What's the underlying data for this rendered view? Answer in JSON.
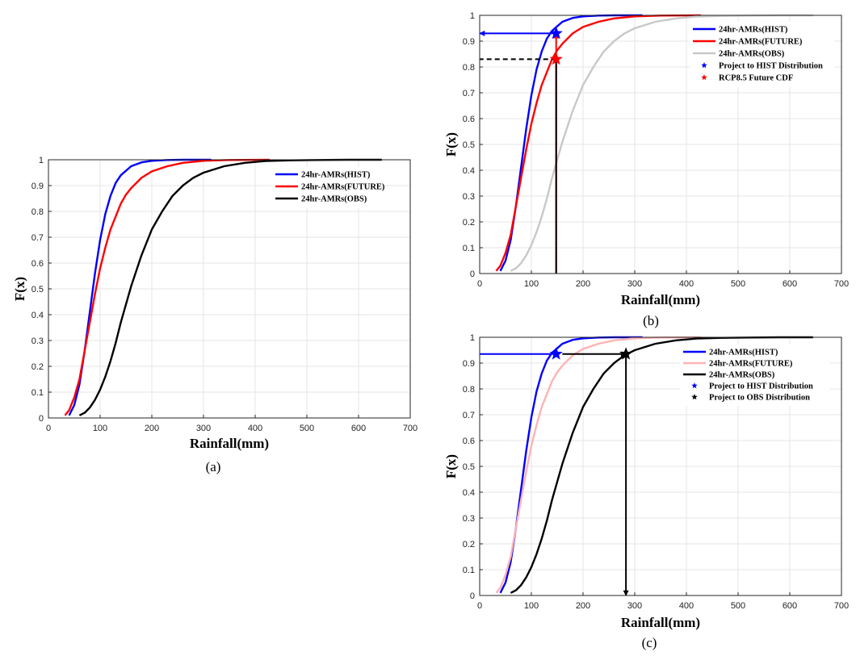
{
  "chart_data": [
    {
      "id": "a",
      "type": "line",
      "caption": "(a)",
      "xlabel": "Rainfall(mm)",
      "ylabel": "F(x)",
      "xlim": [
        0,
        700
      ],
      "ylim": [
        0,
        1
      ],
      "xticks": [
        "0",
        "100",
        "200",
        "300",
        "400",
        "500",
        "600",
        "700"
      ],
      "yticks": [
        "0",
        "0.1",
        "0.2",
        "0.3",
        "0.4",
        "0.5",
        "0.6",
        "0.7",
        "0.8",
        "0.9",
        "1"
      ],
      "grid": true,
      "legend_position": "top-right",
      "series": [
        {
          "name": "24hr-AMRs(HIST)",
          "color": "#0000ff",
          "x": [
            40,
            50,
            60,
            70,
            80,
            90,
            100,
            110,
            120,
            130,
            140,
            160,
            180,
            200,
            230,
            260,
            315
          ],
          "y": [
            0.01,
            0.05,
            0.13,
            0.26,
            0.41,
            0.56,
            0.69,
            0.79,
            0.86,
            0.91,
            0.94,
            0.975,
            0.99,
            0.996,
            0.999,
            1.0,
            1.0
          ]
        },
        {
          "name": "24hr-AMRs(FUTURE)",
          "color": "#ff0000",
          "x": [
            32,
            40,
            50,
            60,
            70,
            80,
            90,
            100,
            110,
            120,
            130,
            140,
            150,
            160,
            180,
            200,
            230,
            260,
            300,
            350,
            428
          ],
          "y": [
            0.01,
            0.03,
            0.08,
            0.15,
            0.26,
            0.37,
            0.48,
            0.58,
            0.66,
            0.73,
            0.78,
            0.83,
            0.865,
            0.89,
            0.93,
            0.955,
            0.975,
            0.988,
            0.996,
            0.999,
            1.0
          ]
        },
        {
          "name": "24hr-AMRs(OBS)",
          "color": "#000000",
          "x": [
            60,
            70,
            80,
            90,
            100,
            110,
            120,
            130,
            140,
            150,
            160,
            180,
            200,
            220,
            240,
            260,
            280,
            300,
            340,
            380,
            420,
            470,
            520,
            580,
            645
          ],
          "y": [
            0.01,
            0.02,
            0.04,
            0.07,
            0.11,
            0.16,
            0.22,
            0.29,
            0.37,
            0.44,
            0.51,
            0.63,
            0.73,
            0.8,
            0.86,
            0.9,
            0.93,
            0.95,
            0.975,
            0.988,
            0.995,
            0.998,
            0.999,
            1.0,
            1.0
          ]
        }
      ]
    },
    {
      "id": "b",
      "type": "line",
      "caption": "(b)",
      "xlabel": "Rainfall(mm)",
      "ylabel": "F(x)",
      "xlim": [
        0,
        700
      ],
      "ylim": [
        0,
        1
      ],
      "xticks": [
        "0",
        "100",
        "200",
        "300",
        "400",
        "500",
        "600",
        "700"
      ],
      "yticks": [
        "0",
        "0.1",
        "0.2",
        "0.3",
        "0.4",
        "0.5",
        "0.6",
        "0.7",
        "0.8",
        "0.9",
        "1"
      ],
      "grid": true,
      "legend_position": "top-right",
      "series": [
        {
          "name": "24hr-AMRs(HIST)",
          "color": "#0000ff",
          "x": [
            40,
            50,
            60,
            70,
            80,
            90,
            100,
            110,
            120,
            130,
            140,
            160,
            180,
            200,
            230,
            260,
            315
          ],
          "y": [
            0.01,
            0.05,
            0.13,
            0.26,
            0.41,
            0.56,
            0.69,
            0.79,
            0.86,
            0.91,
            0.94,
            0.975,
            0.99,
            0.996,
            0.999,
            1.0,
            1.0
          ]
        },
        {
          "name": "24hr-AMRs(FUTURE)",
          "color": "#ff0000",
          "x": [
            32,
            40,
            50,
            60,
            70,
            80,
            90,
            100,
            110,
            120,
            130,
            140,
            150,
            160,
            180,
            200,
            230,
            260,
            300,
            350,
            428
          ],
          "y": [
            0.01,
            0.03,
            0.08,
            0.15,
            0.26,
            0.37,
            0.48,
            0.58,
            0.66,
            0.73,
            0.78,
            0.83,
            0.865,
            0.89,
            0.93,
            0.955,
            0.975,
            0.988,
            0.996,
            0.999,
            1.0
          ]
        },
        {
          "name": "24hr-AMRs(OBS)",
          "color": "#c8c8c8",
          "x": [
            60,
            70,
            80,
            90,
            100,
            110,
            120,
            130,
            140,
            150,
            160,
            180,
            200,
            220,
            240,
            260,
            280,
            300,
            340,
            380,
            420,
            470,
            520,
            580,
            645
          ],
          "y": [
            0.01,
            0.02,
            0.04,
            0.07,
            0.11,
            0.16,
            0.22,
            0.29,
            0.37,
            0.44,
            0.51,
            0.63,
            0.73,
            0.8,
            0.86,
            0.9,
            0.93,
            0.95,
            0.975,
            0.988,
            0.995,
            0.998,
            0.999,
            1.0,
            1.0
          ]
        }
      ],
      "points": [
        {
          "name": "Project to HIST Distribution",
          "color": "#0000ff",
          "x": 148,
          "y": 0.93
        },
        {
          "name": "RCP8.5 Future CDF",
          "color": "#ff0000",
          "x": 148,
          "y": 0.83
        }
      ],
      "guides": [
        {
          "from": [
            148,
            0
          ],
          "to": [
            148,
            0.83
          ],
          "color": "#ff0000",
          "style": "solid",
          "arrow": false
        },
        {
          "from": [
            148,
            0
          ],
          "to": [
            148,
            0.83
          ],
          "color": "#000000",
          "style": "solid",
          "arrow": false
        },
        {
          "from": [
            148,
            0.83
          ],
          "to": [
            0,
            0.83
          ],
          "color": "#000000",
          "style": "dashed",
          "arrow": false
        },
        {
          "from": [
            148,
            0.83
          ],
          "to": [
            148,
            0.93
          ],
          "color": "#ff0000",
          "style": "solid",
          "arrow": true
        },
        {
          "from": [
            148,
            0.93
          ],
          "to": [
            0,
            0.93
          ],
          "color": "#0000ff",
          "style": "solid",
          "arrow": true
        }
      ]
    },
    {
      "id": "c",
      "type": "line",
      "caption": "(c)",
      "xlabel": "Rainfall(mm)",
      "ylabel": "F(x)",
      "xlim": [
        0,
        700
      ],
      "ylim": [
        0,
        1
      ],
      "xticks": [
        "0",
        "100",
        "200",
        "300",
        "400",
        "500",
        "600",
        "700"
      ],
      "yticks": [
        "0",
        "0.1",
        "0.2",
        "0.3",
        "0.4",
        "0.5",
        "0.6",
        "0.7",
        "0.8",
        "0.9",
        "1"
      ],
      "grid": true,
      "legend_position": "top-right",
      "series": [
        {
          "name": "24hr-AMRs(HIST)",
          "color": "#0000ff",
          "x": [
            40,
            50,
            60,
            70,
            80,
            90,
            100,
            110,
            120,
            130,
            140,
            160,
            180,
            200,
            230,
            260,
            315
          ],
          "y": [
            0.01,
            0.05,
            0.13,
            0.26,
            0.41,
            0.56,
            0.69,
            0.79,
            0.86,
            0.91,
            0.94,
            0.975,
            0.99,
            0.996,
            0.999,
            1.0,
            1.0
          ]
        },
        {
          "name": "24hr-AMRs(FUTURE)",
          "color": "#ffb3b3",
          "x": [
            32,
            40,
            50,
            60,
            70,
            80,
            90,
            100,
            110,
            120,
            130,
            140,
            150,
            160,
            180,
            200,
            230,
            260,
            300,
            350,
            428
          ],
          "y": [
            0.01,
            0.03,
            0.08,
            0.15,
            0.26,
            0.37,
            0.48,
            0.58,
            0.66,
            0.73,
            0.78,
            0.83,
            0.865,
            0.89,
            0.93,
            0.955,
            0.975,
            0.988,
            0.996,
            0.999,
            1.0
          ]
        },
        {
          "name": "24hr-AMRs(OBS)",
          "color": "#000000",
          "x": [
            60,
            70,
            80,
            90,
            100,
            110,
            120,
            130,
            140,
            150,
            160,
            180,
            200,
            220,
            240,
            260,
            280,
            300,
            340,
            380,
            420,
            470,
            520,
            580,
            645
          ],
          "y": [
            0.01,
            0.02,
            0.04,
            0.07,
            0.11,
            0.16,
            0.22,
            0.29,
            0.37,
            0.44,
            0.51,
            0.63,
            0.73,
            0.8,
            0.86,
            0.9,
            0.93,
            0.95,
            0.975,
            0.988,
            0.995,
            0.998,
            0.999,
            1.0,
            1.0
          ]
        }
      ],
      "points": [
        {
          "name": "Project to HIST Distribution",
          "color": "#0000ff",
          "x": 148,
          "y": 0.935
        },
        {
          "name": "Project to OBS Distribution",
          "color": "#000000",
          "x": 283,
          "y": 0.935
        }
      ],
      "guides": [
        {
          "from": [
            148,
            0.935
          ],
          "to": [
            0,
            0.935
          ],
          "color": "#0000ff",
          "style": "solid",
          "arrow": false
        },
        {
          "from": [
            160,
            0.935
          ],
          "to": [
            283,
            0.935
          ],
          "color": "#000000",
          "style": "solid",
          "arrow": true
        },
        {
          "from": [
            283,
            0.935
          ],
          "to": [
            283,
            0
          ],
          "color": "#000000",
          "style": "solid",
          "arrow": true
        }
      ]
    }
  ]
}
